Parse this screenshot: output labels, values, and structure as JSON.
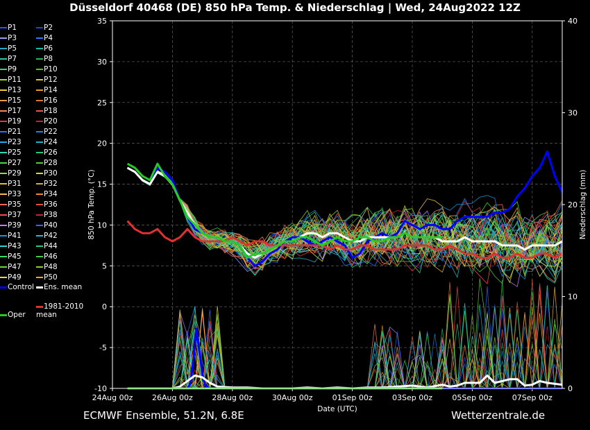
{
  "title": "Düsseldorf 40468 (DE)  850 hPa Temp. & Niederschlag | Wed, 24Aug2022 12Z",
  "footer": {
    "model": "ECMWF Ensemble, 51.2N, 6.8E",
    "site": "Wetterzentrale.de"
  },
  "colors": {
    "background": "#000000",
    "control": "#0000ff",
    "ens_mean": "#ffffff",
    "climate": "#e03030",
    "oper": "#22cc22",
    "grid": "#555555"
  },
  "legend": {
    "members": [
      "P1",
      "P2",
      "P3",
      "P4",
      "P5",
      "P6",
      "P7",
      "P8",
      "P9",
      "P10",
      "P11",
      "P12",
      "P13",
      "P14",
      "P15",
      "P16",
      "P17",
      "P18",
      "P19",
      "P20",
      "P21",
      "P22",
      "P23",
      "P24",
      "P25",
      "P26",
      "P27",
      "P28",
      "P29",
      "P30",
      "P31",
      "P32",
      "P33",
      "P34",
      "P35",
      "P36",
      "P37",
      "P38",
      "P39",
      "P40",
      "P41",
      "P42",
      "P43",
      "P44",
      "P45",
      "P46",
      "P47",
      "P48",
      "P49",
      "P50"
    ],
    "member_colors": [
      "#2255ff",
      "#1a44dd",
      "#9999ff",
      "#3377ff",
      "#22aacc",
      "#11bbaa",
      "#22ccaa",
      "#22bb55",
      "#33dd55",
      "#44cc22",
      "#aadd22",
      "#ddcc22",
      "#eecc33",
      "#ee9922",
      "#ff9944",
      "#dd7733",
      "#ff8855",
      "#ee5544",
      "#ee3333",
      "#cc2222",
      "#2277ff",
      "#1188ee",
      "#22aaee",
      "#11bbcc",
      "#22ddbb",
      "#22cc77",
      "#44dd44",
      "#55cc33",
      "#99dd33",
      "#dddd22",
      "#eebb22",
      "#ddaa33",
      "#ffbb55",
      "#ee8833",
      "#ff6655",
      "#dd5533",
      "#ff4455",
      "#cc2233",
      "#cc77ff",
      "#3366ff",
      "#1199dd",
      "#22bbdd",
      "#22ddcc",
      "#22cc88",
      "#33dd66",
      "#44cc44",
      "#66dd33",
      "#99cc22",
      "#dddd44",
      "#eeaa22"
    ],
    "control": "Control",
    "ens_mean": "Ens. mean",
    "climate": "1981-2010 mean",
    "oper": "Oper"
  },
  "chart_data": {
    "type": "line",
    "ylabel": "850 hPa Temp. (°C)",
    "y2label": "Niederschlag (mm)",
    "xlabel": "Date (UTC)",
    "ylim": [
      -10,
      35
    ],
    "y2lim": [
      0,
      40
    ],
    "yticks": [
      35,
      30,
      25,
      20,
      15,
      10,
      5,
      0,
      -5,
      -10
    ],
    "y2ticks": [
      40,
      30,
      20,
      10,
      0
    ],
    "xlim": [
      0,
      15
    ],
    "xticks": [
      {
        "day": 0,
        "label": "24Aug 00z"
      },
      {
        "day": 2,
        "label": "26Aug 00z"
      },
      {
        "day": 4,
        "label": "28Aug 00z"
      },
      {
        "day": 6,
        "label": "30Aug 00z"
      },
      {
        "day": 8,
        "label": "01Sep 00z"
      },
      {
        "day": 10,
        "label": "03Sep 00z"
      },
      {
        "day": 12,
        "label": "05Sep 00z"
      },
      {
        "day": 14,
        "label": "07Sep 00z"
      }
    ],
    "grid": true,
    "series": [
      {
        "name": "Control",
        "axis": "temp",
        "color": "#0000ff",
        "x": [
          0.5,
          0.75,
          1.0,
          1.25,
          1.5,
          1.75,
          2.0,
          2.25,
          2.5,
          2.75,
          3.0,
          3.25,
          3.5,
          3.75,
          4.0,
          4.25,
          4.5,
          4.75,
          5.0,
          5.25,
          5.5,
          5.75,
          6.0,
          6.25,
          6.5,
          6.75,
          7.0,
          7.25,
          7.5,
          7.75,
          8.0,
          8.25,
          8.5,
          8.75,
          9.0,
          9.25,
          9.5,
          9.75,
          10.0,
          10.25,
          10.5,
          10.75,
          11.0,
          11.25,
          11.5,
          11.75,
          12.0,
          12.25,
          12.5,
          12.75,
          13.0,
          13.25,
          13.5,
          13.75,
          14.0,
          14.25,
          14.5,
          14.75,
          15.0
        ],
        "y": [
          17,
          16.5,
          15.5,
          15,
          17,
          16.5,
          15.5,
          13,
          11,
          9.5,
          9,
          8.5,
          8.5,
          8,
          8,
          7.5,
          6,
          5,
          5.5,
          6.5,
          7,
          8,
          8.5,
          8.5,
          8,
          7.5,
          8,
          8.5,
          8,
          7.5,
          6,
          6.5,
          8,
          8.5,
          9,
          8.5,
          9,
          10.5,
          10,
          9.5,
          10,
          10,
          9.5,
          9.5,
          10.5,
          11,
          11,
          11,
          11,
          11.5,
          11.5,
          12,
          13.5,
          14.5,
          16,
          17,
          19,
          16,
          14
        ]
      },
      {
        "name": "Ens. mean",
        "axis": "temp",
        "color": "#ffffff",
        "x": [
          0.5,
          0.75,
          1.0,
          1.25,
          1.5,
          1.75,
          2.0,
          2.25,
          2.5,
          2.75,
          3.0,
          3.25,
          3.5,
          3.75,
          4.0,
          4.25,
          4.5,
          4.75,
          5.0,
          5.25,
          5.5,
          5.75,
          6.0,
          6.25,
          6.5,
          6.75,
          7.0,
          7.25,
          7.5,
          7.75,
          8.0,
          8.25,
          8.5,
          8.75,
          9.0,
          9.25,
          9.5,
          9.75,
          10.0,
          10.25,
          10.5,
          10.75,
          11.0,
          11.25,
          11.5,
          11.75,
          12.0,
          12.25,
          12.5,
          12.75,
          13.0,
          13.25,
          13.5,
          13.75,
          14.0,
          14.25,
          14.5,
          14.75,
          15.0
        ],
        "y": [
          17,
          16.5,
          15.5,
          15,
          16.5,
          16,
          15,
          13,
          11.5,
          10,
          9,
          8.5,
          8.5,
          8,
          8,
          7.5,
          6.5,
          6,
          6.5,
          7,
          7.5,
          8,
          8,
          8.5,
          9,
          9,
          8.5,
          9,
          9,
          8.5,
          8,
          8,
          8.5,
          8.5,
          8.5,
          8.5,
          8.5,
          9,
          8.5,
          8.5,
          8.5,
          8.5,
          8,
          8,
          8,
          8.5,
          8,
          8,
          8,
          8,
          7.5,
          7.5,
          7.5,
          7,
          7.5,
          7.5,
          7.5,
          7.5,
          8
        ]
      },
      {
        "name": "1981-2010 mean",
        "axis": "temp",
        "color": "#e03030",
        "x": [
          0.5,
          0.75,
          1.0,
          1.25,
          1.5,
          1.75,
          2.0,
          2.25,
          2.5,
          2.75,
          3.0,
          3.25,
          3.5,
          3.75,
          4.0,
          4.25,
          4.5,
          4.75,
          5.0,
          5.25,
          5.5,
          5.75,
          6.0,
          6.25,
          6.5,
          6.75,
          7.0,
          7.25,
          7.5,
          7.75,
          8.0,
          8.25,
          8.5,
          8.75,
          9.0,
          9.25,
          9.5,
          9.75,
          10.0,
          10.25,
          10.5,
          10.75,
          11.0,
          11.25,
          11.5,
          11.75,
          12.0,
          12.25,
          12.5,
          12.75,
          13.0,
          13.25,
          13.5,
          13.75,
          14.0,
          14.25,
          14.5,
          14.75,
          15.0
        ],
        "y": [
          10.5,
          9.5,
          9,
          9,
          9.5,
          8.5,
          8,
          8.5,
          9.5,
          8.5,
          8,
          8,
          8,
          8,
          8.5,
          8,
          7.5,
          8,
          8,
          7.5,
          7.5,
          7.5,
          7.5,
          7.5,
          7.5,
          7.5,
          7.5,
          7,
          7.5,
          7,
          7,
          7.5,
          7.5,
          7,
          7,
          7,
          7,
          7.5,
          7.5,
          7.5,
          7.5,
          7,
          7,
          7.5,
          7,
          6.5,
          6.5,
          6,
          6,
          6.5,
          6,
          6,
          6.5,
          6,
          6,
          6.5,
          6.5,
          6,
          6.5
        ]
      },
      {
        "name": "Oper",
        "axis": "temp",
        "color": "#22cc22",
        "x": [
          0.5,
          0.75,
          1.0,
          1.25,
          1.5,
          1.75,
          2.0,
          2.25,
          2.5,
          2.75,
          3.0,
          3.25,
          3.5,
          3.75,
          4.0,
          4.25,
          4.5,
          4.75,
          5.0,
          5.25,
          5.5,
          5.75,
          6.0,
          6.25,
          6.5,
          6.75,
          7.0,
          7.25,
          7.5,
          7.75,
          8.0,
          8.25,
          8.5,
          8.75,
          9.0,
          9.25,
          9.5,
          9.75,
          10.0,
          10.25,
          10.5,
          10.75,
          11.0
        ],
        "y": [
          17.5,
          17,
          16,
          15.5,
          17.5,
          16,
          15,
          13,
          11,
          10,
          9,
          8.5,
          8.5,
          8,
          8,
          7.5,
          6,
          6.5,
          6.5,
          7,
          7.5,
          8,
          8,
          8.5,
          8.5,
          8,
          7.5,
          8,
          8.5,
          8,
          8,
          8.5,
          8.5,
          8,
          8,
          8.5,
          8.5,
          9,
          8.5,
          8.5,
          8.5,
          8.5,
          8.5
        ]
      },
      {
        "name": "Control",
        "axis": "precip",
        "color": "#0000ff",
        "x": [
          0.5,
          1.0,
          1.5,
          2.0,
          2.25,
          2.5,
          2.6,
          2.7,
          2.8,
          2.9,
          3.0,
          3.1,
          3.25,
          3.5,
          4.0,
          5.0,
          6.0,
          7.0,
          8.0,
          9.0,
          10.0,
          11.0,
          12.0,
          13.0,
          14.0,
          15.0
        ],
        "y": [
          0,
          0,
          0,
          0,
          0,
          0,
          0.5,
          3,
          6.5,
          4,
          1.5,
          0.3,
          0,
          0,
          0,
          0,
          0,
          0,
          0,
          0,
          0,
          0,
          0,
          0,
          0,
          0
        ]
      },
      {
        "name": "Ens. mean",
        "axis": "precip",
        "color": "#ffffff",
        "x": [
          0.5,
          1.0,
          1.5,
          2.0,
          2.25,
          2.5,
          2.75,
          3.0,
          3.25,
          3.5,
          4.0,
          4.5,
          5.0,
          5.5,
          6.0,
          6.5,
          7.0,
          7.5,
          8.0,
          8.5,
          9.0,
          9.5,
          10.0,
          10.5,
          11.0,
          11.25,
          11.5,
          11.75,
          12.0,
          12.25,
          12.5,
          12.75,
          13.0,
          13.25,
          13.5,
          13.75,
          14.0,
          14.25,
          14.5,
          14.75,
          15.0
        ],
        "y": [
          0,
          0,
          0,
          0,
          0.2,
          0.8,
          1.4,
          1.2,
          0.6,
          0.2,
          0.1,
          0.1,
          0,
          0,
          0,
          0.1,
          0,
          0.1,
          0,
          0.1,
          0.1,
          0.2,
          0.3,
          0.1,
          0.4,
          0.2,
          0.3,
          0.6,
          0.6,
          0.6,
          1.4,
          0.6,
          0.8,
          1.0,
          1.0,
          0.3,
          0.4,
          0.8,
          0.6,
          0.5,
          0.4
        ]
      },
      {
        "name": "Oper",
        "axis": "precip",
        "color": "#22cc22",
        "x": [
          0.5,
          1.0,
          2.0,
          3.0,
          4.0,
          5.0,
          6.0,
          7.0,
          8.0,
          9.0,
          10.0,
          11.0
        ],
        "y": [
          0,
          0,
          0,
          0,
          0,
          0,
          0,
          0,
          0,
          0,
          0,
          0
        ]
      }
    ]
  }
}
